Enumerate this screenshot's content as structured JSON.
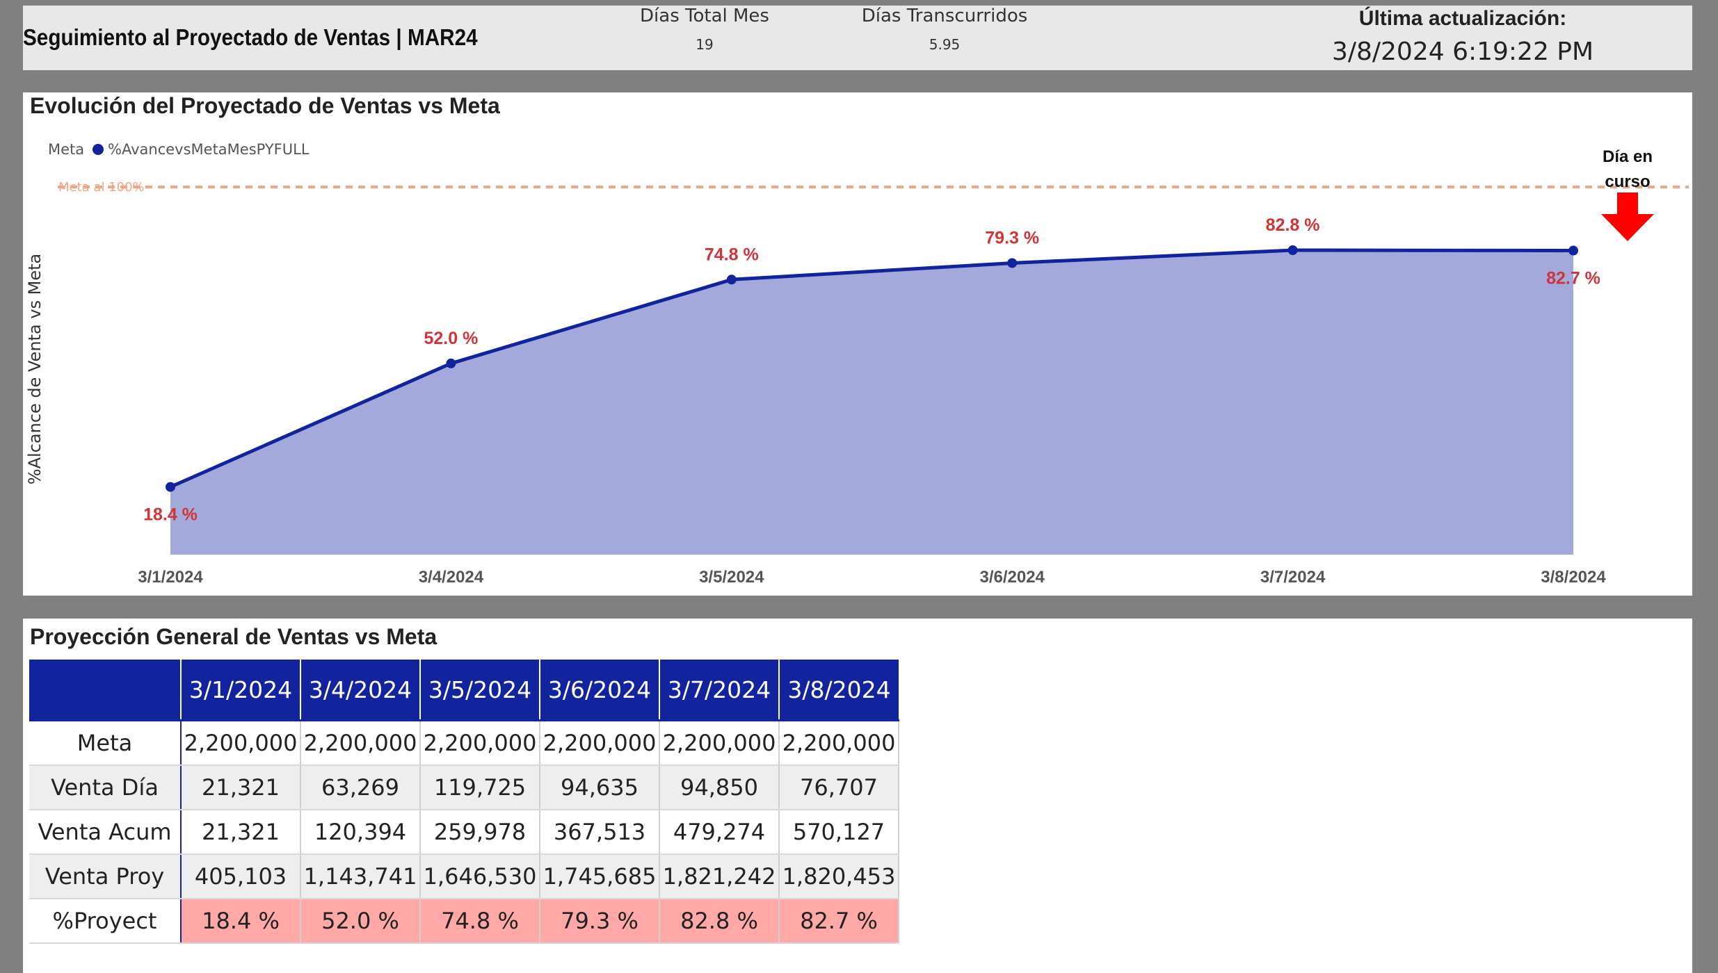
{
  "header": {
    "title": "Seguimiento al Proyectado de Ventas | MAR24",
    "dias_total_label": "Días Total Mes",
    "dias_total_value": "19",
    "dias_trans_label": "Días Transcurridos",
    "dias_trans_value": "5.95",
    "update_label": "Última actualización:",
    "update_value": "3/8/2024 6:19:22 PM"
  },
  "chart_panel": {
    "title": "Evolución del Proyectado de Ventas vs Meta",
    "annotation_line1": "Día en",
    "annotation_line2": "curso"
  },
  "chart_data": {
    "type": "area",
    "categories": [
      "3/1/2024",
      "3/4/2024",
      "3/5/2024",
      "3/6/2024",
      "3/7/2024",
      "3/8/2024"
    ],
    "series": [
      {
        "name": "%AvancevsMetaMesPYFULL",
        "values": [
          18.4,
          52.0,
          74.8,
          79.3,
          82.8,
          82.7
        ]
      }
    ],
    "data_labels": [
      "18.4 %",
      "52.0 %",
      "74.8 %",
      "79.3 %",
      "82.8 %",
      "82.7 %"
    ],
    "legend_entries": [
      "Meta",
      "%AvancevsMetaMesPYFULL"
    ],
    "legend_placement": "top-left",
    "reference_line": {
      "label": "Meta al 100%",
      "value": 100,
      "color": "#f4a582"
    },
    "ylabel": "%Alcance de Venta vs Meta",
    "xlabel": "",
    "ylim": [
      0,
      100
    ],
    "grid": false,
    "colors": {
      "line": "#12239E",
      "area": "#a3aadb",
      "labels": "#d13438"
    }
  },
  "table_panel": {
    "title": "Proyección General de Ventas vs Meta",
    "columns": [
      "3/1/2024",
      "3/4/2024",
      "3/5/2024",
      "3/6/2024",
      "3/7/2024",
      "3/8/2024"
    ],
    "rows": [
      {
        "label": "Meta",
        "values": [
          "2,200,000",
          "2,200,000",
          "2,200,000",
          "2,200,000",
          "2,200,000",
          "2,200,000"
        ]
      },
      {
        "label": "Venta Día",
        "values": [
          "21,321",
          "63,269",
          "119,725",
          "94,635",
          "94,850",
          "76,707"
        ]
      },
      {
        "label": "Venta Acum",
        "values": [
          "21,321",
          "120,394",
          "259,978",
          "367,513",
          "479,274",
          "570,127"
        ]
      },
      {
        "label": "Venta Proy",
        "values": [
          "405,103",
          "1,143,741",
          "1,646,530",
          "1,745,685",
          "1,821,242",
          "1,820,453"
        ]
      },
      {
        "label": "%Proyect",
        "values": [
          "18.4 %",
          "52.0 %",
          "74.8 %",
          "79.3 %",
          "82.8 %",
          "82.7 %"
        ]
      }
    ]
  }
}
